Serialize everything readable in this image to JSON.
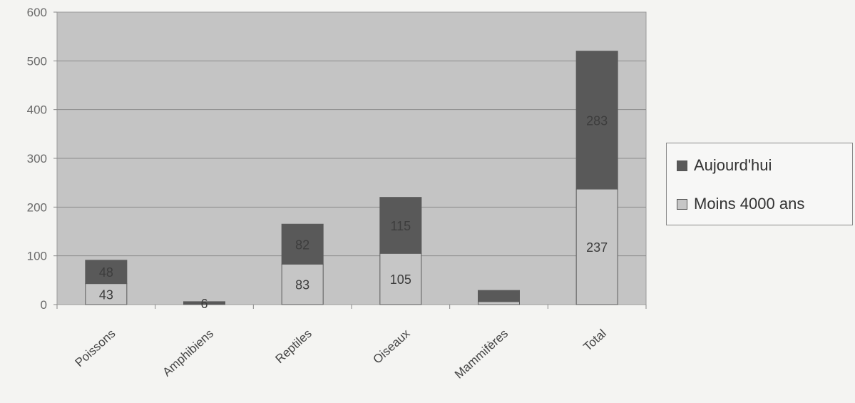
{
  "chart_data": {
    "type": "bar",
    "stacked": true,
    "categories": [
      "Poissons",
      "Amphibiens",
      "Reptiles",
      "Oiseaux",
      "Mammifères",
      "Total"
    ],
    "series": [
      {
        "name": "Moins 4000 ans",
        "values": [
          43,
          0,
          83,
          105,
          6,
          237
        ],
        "labels": [
          "43",
          "",
          "83",
          "105",
          "",
          "237"
        ],
        "color": "#c6c6c6"
      },
      {
        "name": "Aujourd'hui",
        "values": [
          48,
          6,
          82,
          115,
          23,
          283
        ],
        "labels": [
          "48",
          "6",
          "82",
          "115",
          "",
          "283"
        ],
        "color": "#595959"
      }
    ],
    "ylim": [
      0,
      600
    ],
    "yticks": [
      0,
      100,
      200,
      300,
      400,
      500,
      600
    ],
    "grid": true,
    "legend_position": "right",
    "plot_background": "#c4c4c4"
  }
}
